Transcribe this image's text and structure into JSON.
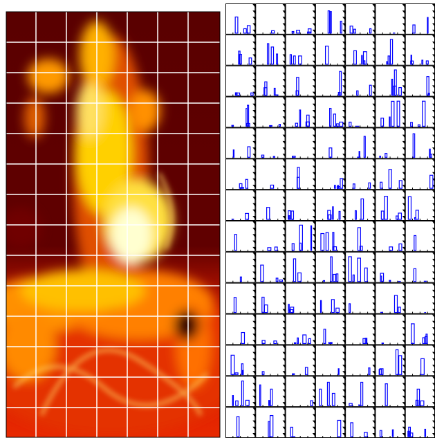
{
  "heatmap": {
    "grid": {
      "rows": 14,
      "cols": 7
    }
  },
  "histograms": {
    "rows": 14,
    "cols": 7
  }
}
